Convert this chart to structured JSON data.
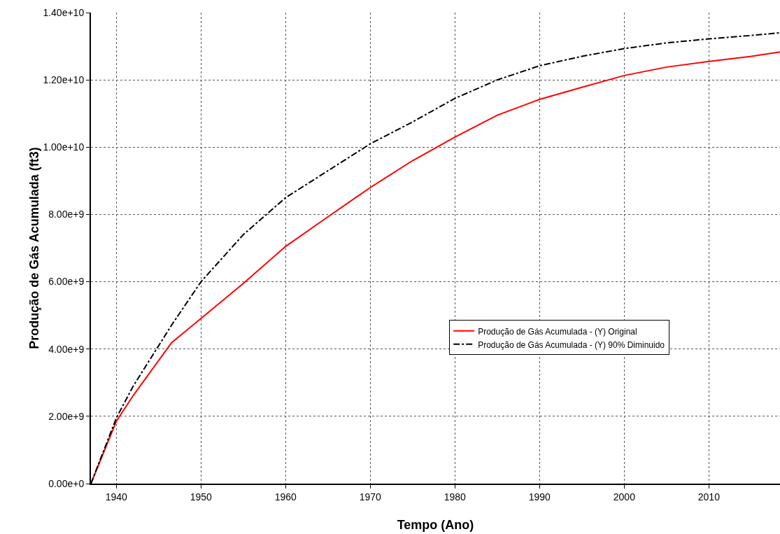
{
  "chart_data": {
    "type": "line",
    "xlabel": "Tempo (Ano)",
    "ylabel": "Produção de Gás Acumulada (ft3)",
    "xlim": [
      1937,
      2018.4
    ],
    "xticks": [
      1940,
      1950,
      1960,
      1970,
      1980,
      1990,
      2000,
      2010
    ],
    "ylim": [
      0,
      14000000000
    ],
    "yticks": [
      {
        "value": 0,
        "label": "0.00e+0"
      },
      {
        "value": 2000000000,
        "label": "2.00e+9"
      },
      {
        "value": 4000000000,
        "label": "4.00e+9"
      },
      {
        "value": 6000000000,
        "label": "6.00e+9"
      },
      {
        "value": 8000000000,
        "label": "8.00e+9"
      },
      {
        "value": 10000000000,
        "label": "1.00e+10"
      },
      {
        "value": 12000000000,
        "label": "1.20e+10"
      },
      {
        "value": 14000000000,
        "label": "1.40e+10"
      }
    ],
    "grid": true,
    "legend": "right",
    "marker": "none",
    "x": [
      1937,
      1940,
      1942,
      1946.5,
      1950,
      1955,
      1960,
      1965,
      1970,
      1975,
      1980,
      1985,
      1990,
      1995,
      2000,
      2005,
      2010,
      2015,
      2018.4
    ],
    "series": [
      {
        "name": "Produção de Gás Acumulada - (Y) Original",
        "color": "#ff0000",
        "line_style": "solid",
        "values": [
          0,
          1850000000,
          2620000000,
          4180000000,
          4910000000,
          5950000000,
          7050000000,
          7930000000,
          8800000000,
          9600000000,
          10300000000,
          10950000000,
          11420000000,
          11780000000,
          12130000000,
          12380000000,
          12550000000,
          12700000000,
          12830000000
        ]
      },
      {
        "name": "Produção de Gás Acumulada - (Y) 90% Diminuido",
        "color": "#000000",
        "line_style": "dashed",
        "values": [
          0,
          1950000000,
          2900000000,
          4700000000,
          6000000000,
          7400000000,
          8500000000,
          9300000000,
          10100000000,
          10750000000,
          11450000000,
          12000000000,
          12420000000,
          12700000000,
          12930000000,
          13100000000,
          13220000000,
          13320000000,
          13400000000
        ]
      }
    ]
  }
}
